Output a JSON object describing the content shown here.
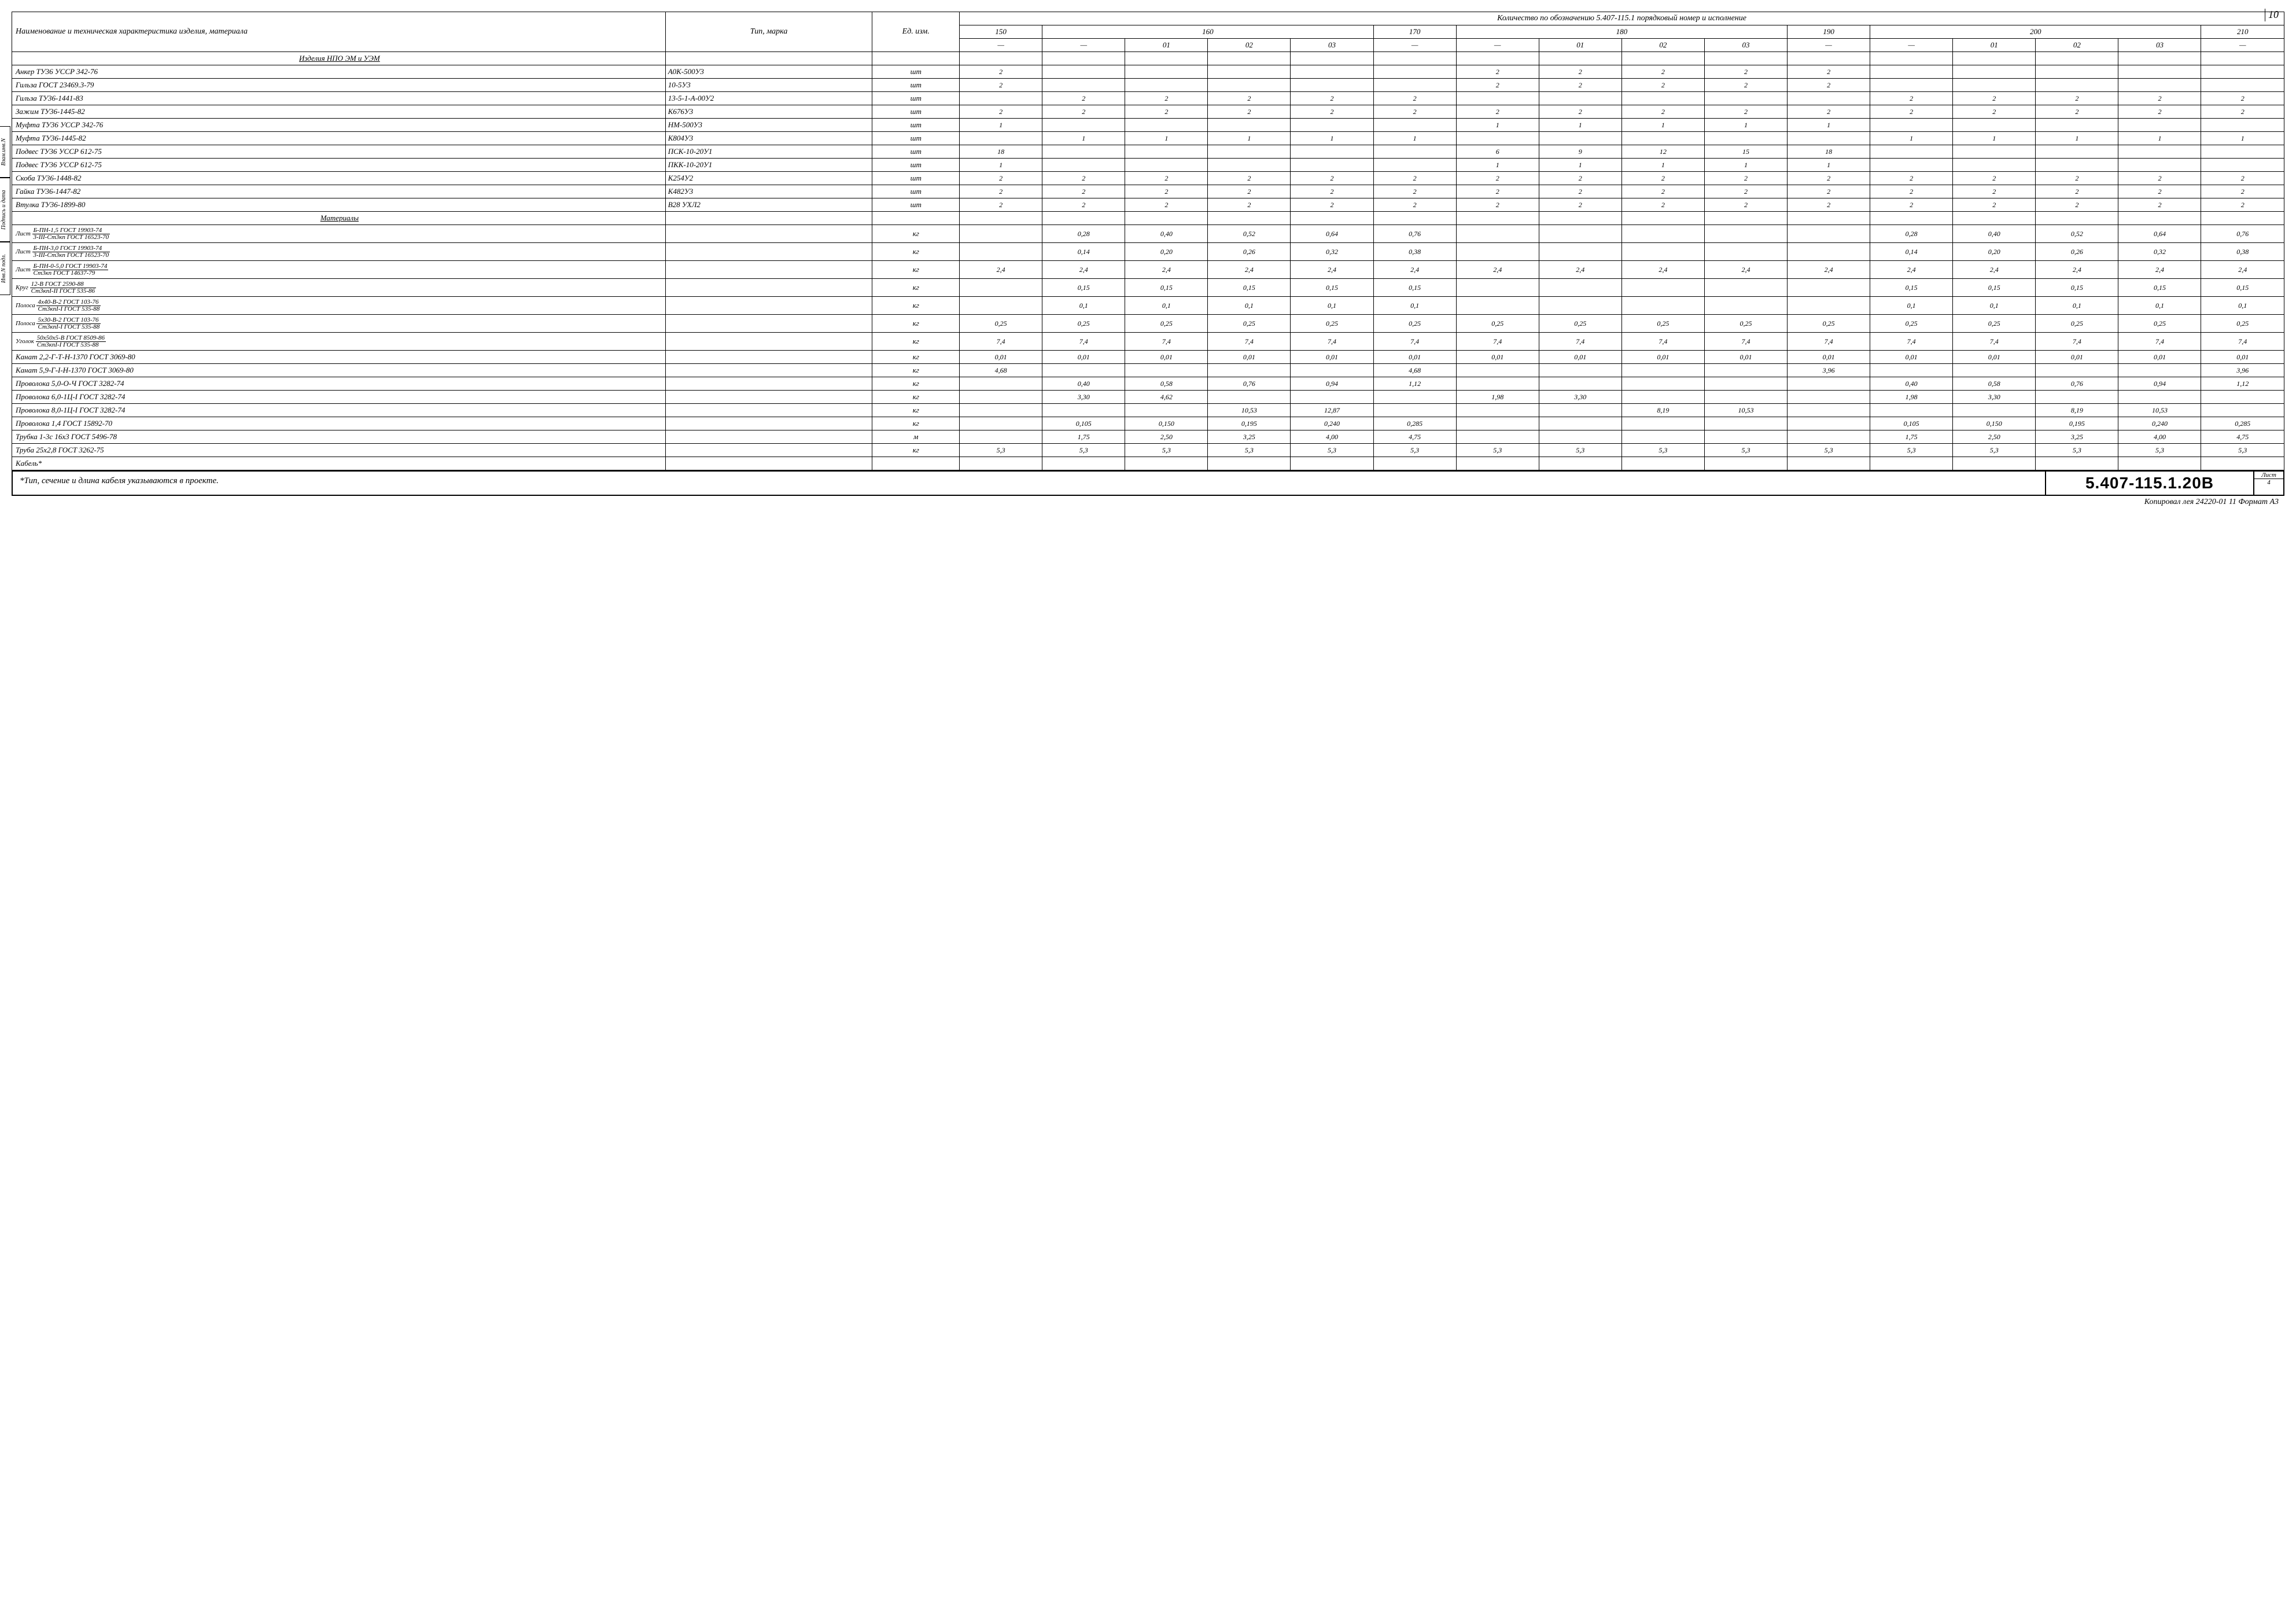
{
  "page_number_top": "10",
  "header": {
    "col_name": "Наименование и техническая характеристика изделия, материала",
    "col_type": "Тип, марка",
    "col_unit": "Ед. изм.",
    "qty_title": "Количество по обозначению 5.407-115.1 порядковый номер и исполнение",
    "groups": [
      "150",
      "160",
      "170",
      "180",
      "190",
      "200",
      "210"
    ],
    "subs": [
      "—",
      "—",
      "01",
      "02",
      "03",
      "—",
      "—",
      "01",
      "02",
      "03",
      "—",
      "—",
      "01",
      "02",
      "03",
      "—"
    ]
  },
  "sections": [
    {
      "type": "hdr",
      "name": "Изделия НПО ЭМ и УЭМ"
    },
    {
      "name": "Анкер ТУ36 УССР 342-76",
      "tp": "А0К-500У3",
      "u": "шт",
      "q": [
        "2",
        "",
        "",
        "",
        "",
        "",
        "2",
        "2",
        "2",
        "2",
        "2",
        "",
        "",
        "",
        "",
        ""
      ]
    },
    {
      "name": "Гильза ГОСТ 23469.3-79",
      "tp": "10-5У3",
      "u": "шт",
      "q": [
        "2",
        "",
        "",
        "",
        "",
        "",
        "2",
        "2",
        "2",
        "2",
        "2",
        "",
        "",
        "",
        "",
        ""
      ]
    },
    {
      "name": "Гильза ТУ36-1441-83",
      "tp": "13-5-1-А-00У2",
      "u": "шт",
      "q": [
        "",
        "2",
        "2",
        "2",
        "2",
        "2",
        "",
        "",
        "",
        "",
        "",
        "2",
        "2",
        "2",
        "2",
        "2"
      ]
    },
    {
      "name": "Зажим ТУ36-1445-82",
      "tp": "К676У3",
      "u": "шт",
      "q": [
        "2",
        "2",
        "2",
        "2",
        "2",
        "2",
        "2",
        "2",
        "2",
        "2",
        "2",
        "2",
        "2",
        "2",
        "2",
        "2"
      ]
    },
    {
      "name": "Муфта ТУ36 УССР 342-76",
      "tp": "НМ-500У3",
      "u": "шт",
      "q": [
        "1",
        "",
        "",
        "",
        "",
        "",
        "1",
        "1",
        "1",
        "1",
        "1",
        "",
        "",
        "",
        "",
        ""
      ]
    },
    {
      "name": "Муфта ТУ36-1445-82",
      "tp": "К804У3",
      "u": "шт",
      "q": [
        "",
        "1",
        "1",
        "1",
        "1",
        "1",
        "",
        "",
        "",
        "",
        "",
        "1",
        "1",
        "1",
        "1",
        "1"
      ]
    },
    {
      "name": "Подвес ТУ36 УССР 612-75",
      "tp": "ПСК-10-20У1",
      "u": "шт",
      "q": [
        "18",
        "",
        "",
        "",
        "",
        "",
        "6",
        "9",
        "12",
        "15",
        "18",
        "",
        "",
        "",
        "",
        ""
      ]
    },
    {
      "name": "Подвес ТУ36 УССР 612-75",
      "tp": "ПКК-10-20У1",
      "u": "шт",
      "q": [
        "1",
        "",
        "",
        "",
        "",
        "",
        "1",
        "1",
        "1",
        "1",
        "1",
        "",
        "",
        "",
        "",
        ""
      ]
    },
    {
      "name": "Скоба ТУ36-1448-82",
      "tp": "К254У2",
      "u": "шт",
      "q": [
        "2",
        "2",
        "2",
        "2",
        "2",
        "2",
        "2",
        "2",
        "2",
        "2",
        "2",
        "2",
        "2",
        "2",
        "2",
        "2"
      ]
    },
    {
      "name": "Гайка ТУ36-1447-82",
      "tp": "К482У3",
      "u": "шт",
      "q": [
        "2",
        "2",
        "2",
        "2",
        "2",
        "2",
        "2",
        "2",
        "2",
        "2",
        "2",
        "2",
        "2",
        "2",
        "2",
        "2"
      ]
    },
    {
      "name": "Втулка ТУ36-1899-80",
      "tp": "В28 УХЛ2",
      "u": "шт",
      "q": [
        "2",
        "2",
        "2",
        "2",
        "2",
        "2",
        "2",
        "2",
        "2",
        "2",
        "2",
        "2",
        "2",
        "2",
        "2",
        "2"
      ]
    },
    {
      "type": "hdr",
      "name": "Материалы"
    },
    {
      "type": "frac",
      "pre": "Лист",
      "top": "Б-ПН-1,5 ГОСТ 19903-74",
      "bot": "3-III-Ст3кп ГОСТ 16523-70",
      "tp": "",
      "u": "кг",
      "q": [
        "",
        "0,28",
        "0,40",
        "0,52",
        "0,64",
        "0,76",
        "",
        "",
        "",
        "",
        "",
        "0,28",
        "0,40",
        "0,52",
        "0,64",
        "0,76"
      ]
    },
    {
      "type": "frac",
      "pre": "Лист",
      "top": "Б-ПН-3,0 ГОСТ 19903-74",
      "bot": "3-III-Ст3кп ГОСТ 16523-70",
      "tp": "",
      "u": "кг",
      "q": [
        "",
        "0,14",
        "0,20",
        "0,26",
        "0,32",
        "0,38",
        "",
        "",
        "",
        "",
        "",
        "0,14",
        "0,20",
        "0,26",
        "0,32",
        "0,38"
      ]
    },
    {
      "type": "frac",
      "pre": "Лист",
      "top": "Б-ПН-0-5,0 ГОСТ 19903-74",
      "bot": "Ст3кп ГОСТ 14637-79",
      "tp": "",
      "u": "кг",
      "q": [
        "2,4",
        "2,4",
        "2,4",
        "2,4",
        "2,4",
        "2,4",
        "2,4",
        "2,4",
        "2,4",
        "2,4",
        "2,4",
        "2,4",
        "2,4",
        "2,4",
        "2,4",
        "2,4"
      ]
    },
    {
      "type": "frac",
      "pre": "Круг",
      "top": "12-В ГОСТ 2590-88",
      "bot": "Ст3кпI-II ГОСТ 535-86",
      "tp": "",
      "u": "кг",
      "q": [
        "",
        "0,15",
        "0,15",
        "0,15",
        "0,15",
        "0,15",
        "",
        "",
        "",
        "",
        "",
        "0,15",
        "0,15",
        "0,15",
        "0,15",
        "0,15"
      ]
    },
    {
      "type": "frac",
      "pre": "Полоса",
      "top": "4х40-В-2 ГОСТ 103-76",
      "bot": "Ст3кпI-I ГОСТ 535-88",
      "tp": "",
      "u": "кг",
      "q": [
        "",
        "0,1",
        "0,1",
        "0,1",
        "0,1",
        "0,1",
        "",
        "",
        "",
        "",
        "",
        "0,1",
        "0,1",
        "0,1",
        "0,1",
        "0,1"
      ]
    },
    {
      "type": "frac",
      "pre": "Полоса",
      "top": "5х30-В-2 ГОСТ 103-76",
      "bot": "Ст3кпI-I ГОСТ 535-88",
      "tp": "",
      "u": "кг",
      "q": [
        "0,25",
        "0,25",
        "0,25",
        "0,25",
        "0,25",
        "0,25",
        "0,25",
        "0,25",
        "0,25",
        "0,25",
        "0,25",
        "0,25",
        "0,25",
        "0,25",
        "0,25",
        "0,25"
      ]
    },
    {
      "type": "frac",
      "pre": "Уголок",
      "top": "50х50х5-В ГОСТ 8509-86",
      "bot": "Ст3кпI-I ГОСТ 535-88",
      "tp": "",
      "u": "кг",
      "q": [
        "7,4",
        "7,4",
        "7,4",
        "7,4",
        "7,4",
        "7,4",
        "7,4",
        "7,4",
        "7,4",
        "7,4",
        "7,4",
        "7,4",
        "7,4",
        "7,4",
        "7,4",
        "7,4"
      ]
    },
    {
      "name": "Канат 2,2-Г-Т-Н-1370 ГОСТ 3069-80",
      "tp": "",
      "u": "кг",
      "q": [
        "0,01",
        "0,01",
        "0,01",
        "0,01",
        "0,01",
        "0,01",
        "0,01",
        "0,01",
        "0,01",
        "0,01",
        "0,01",
        "0,01",
        "0,01",
        "0,01",
        "0,01",
        "0,01"
      ]
    },
    {
      "name": "Канат 5,9-Г-I-Н-1370 ГОСТ 3069-80",
      "tp": "",
      "u": "кг",
      "q": [
        "4,68",
        "",
        "",
        "",
        "",
        "4,68",
        "",
        "",
        "",
        "",
        "3,96",
        "",
        "",
        "",
        "",
        "3,96"
      ]
    },
    {
      "name": "Проволока 5,0-О-Ч ГОСТ 3282-74",
      "tp": "",
      "u": "кг",
      "q": [
        "",
        "0,40",
        "0,58",
        "0,76",
        "0,94",
        "1,12",
        "",
        "",
        "",
        "",
        "",
        "0,40",
        "0,58",
        "0,76",
        "0,94",
        "1,12"
      ]
    },
    {
      "name": "Проволока 6,0-1Ц-I ГОСТ 3282-74",
      "tp": "",
      "u": "кг",
      "q": [
        "",
        "3,30",
        "4,62",
        "",
        "",
        "",
        "1,98",
        "3,30",
        "",
        "",
        "",
        "1,98",
        "3,30",
        "",
        "",
        ""
      ]
    },
    {
      "name": "Проволока 8,0-1Ц-I ГОСТ 3282-74",
      "tp": "",
      "u": "кг",
      "q": [
        "",
        "",
        "",
        "10,53",
        "12,87",
        "",
        "",
        "",
        "8,19",
        "10,53",
        "",
        "",
        "",
        "8,19",
        "10,53",
        ""
      ]
    },
    {
      "name": "Проволока 1,4 ГОСТ 15892-70",
      "tp": "",
      "u": "кг",
      "q": [
        "",
        "0,105",
        "0,150",
        "0,195",
        "0,240",
        "0,285",
        "",
        "",
        "",
        "",
        "",
        "0,105",
        "0,150",
        "0,195",
        "0,240",
        "0,285"
      ]
    },
    {
      "name": "Трубка 1-3с 16х3 ГОСТ 5496-78",
      "tp": "",
      "u": "м",
      "q": [
        "",
        "1,75",
        "2,50",
        "3,25",
        "4,00",
        "4,75",
        "",
        "",
        "",
        "",
        "",
        "1,75",
        "2,50",
        "3,25",
        "4,00",
        "4,75"
      ]
    },
    {
      "name": "Труба 25х2,8 ГОСТ 3262-75",
      "tp": "",
      "u": "кг",
      "q": [
        "5,3",
        "5,3",
        "5,3",
        "5,3",
        "5,3",
        "5,3",
        "5,3",
        "5,3",
        "5,3",
        "5,3",
        "5,3",
        "5,3",
        "5,3",
        "5,3",
        "5,3",
        "5,3"
      ]
    },
    {
      "name": "Кабель*",
      "tp": "",
      "u": "",
      "q": [
        "",
        "",
        "",
        "",
        "",
        "",
        "",
        "",
        "",
        "",
        "",
        "",
        "",
        "",
        "",
        ""
      ]
    }
  ],
  "footer": {
    "note": "*Тип, сечение и длина кабеля указываются в проекте.",
    "code": "5.407-115.1.20В",
    "sheet_label": "Лист",
    "sheet_num": "4"
  },
  "bottom": "Копировал   лея   24220-01 11   Формат А3",
  "side_labels": [
    "Инв.N подл.",
    "Подпись и дата",
    "Взам.инв.N"
  ]
}
